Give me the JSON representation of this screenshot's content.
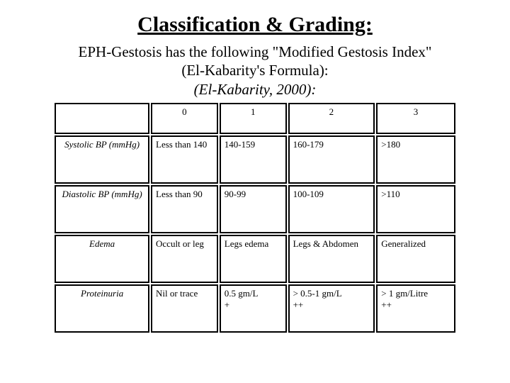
{
  "title": "Classification & Grading:",
  "subtitle_line1": "EPH-Gestosis has the following \"Modified Gestosis Index\"",
  "subtitle_line2": "(El-Kabarity's Formula):",
  "subtitle_line3": "(El-Kabarity, 2000):",
  "table": {
    "header": [
      "",
      "0",
      "1",
      "2",
      "3"
    ],
    "rows": [
      {
        "label": "Systolic BP (mmHg)",
        "c0": "Less than 140",
        "c1": "140-159",
        "c2": "160-179",
        "c3": ">180"
      },
      {
        "label": "Diastolic BP (mmHg)",
        "c0": "Less than 90",
        "c1": "90-99",
        "c2": "100-109",
        "c3": ">110"
      },
      {
        "label": "Edema",
        "c0": "Occult or leg",
        "c1": "Legs edema",
        "c2": "Legs & Abdomen",
        "c3": "Generalized"
      },
      {
        "label": "Proteinuria",
        "c0": "Nil or trace",
        "c1": "0.5 gm/L\n+",
        "c2": "> 0.5-1 gm/L\n++",
        "c3": "> 1 gm/Litre\n++"
      }
    ]
  },
  "colors": {
    "background": "#ffffff",
    "text": "#000000",
    "border": "#000000"
  }
}
